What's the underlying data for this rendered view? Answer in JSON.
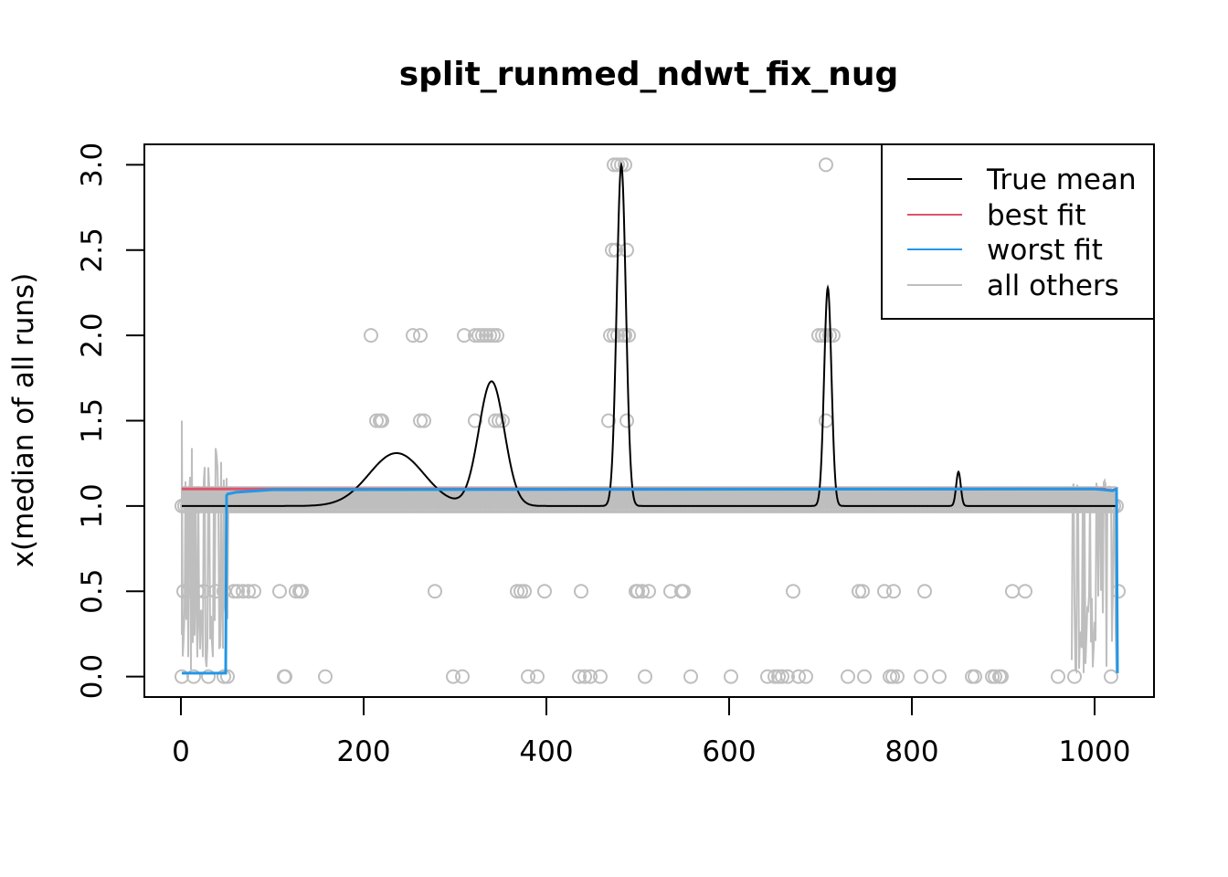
{
  "chart_data": {
    "type": "line",
    "title": "split_runmed_ndwt_fix_nug",
    "xlabel": "",
    "ylabel": "x(median of all runs)",
    "xlim": [
      -40,
      1065
    ],
    "ylim": [
      -0.12,
      3.12
    ],
    "x_ticks": [
      0,
      200,
      400,
      600,
      800,
      1000
    ],
    "y_ticks": [
      0.0,
      0.5,
      1.0,
      1.5,
      2.0,
      2.5,
      3.0
    ],
    "x_tick_labels": [
      "0",
      "200",
      "400",
      "600",
      "800",
      "1000"
    ],
    "y_tick_labels": [
      "0.0",
      "0.5",
      "1.0",
      "1.5",
      "2.0",
      "2.5",
      "3.0"
    ],
    "grid": false,
    "legend_position": "top-right",
    "legend": [
      {
        "label": "True mean",
        "color": "#000000"
      },
      {
        "label": "best fit",
        "color": "#DF536B"
      },
      {
        "label": "worst fit",
        "color": "#2297E6"
      },
      {
        "label": "all others",
        "color": "#BEBEBE"
      }
    ],
    "true_mean": {
      "baseline": 1.0,
      "bumps": [
        {
          "center": 236,
          "height": 0.31,
          "width": 30
        },
        {
          "center": 340,
          "height": 0.73,
          "width": 14
        },
        {
          "center": 482,
          "height": 2.0,
          "width": 5
        },
        {
          "center": 708,
          "height": 1.28,
          "width": 4
        },
        {
          "center": 851,
          "height": 0.2,
          "width": 2.5
        }
      ]
    },
    "best_fit": {
      "x": [
        1,
        1010,
        1018,
        1024
      ],
      "y": [
        1.1,
        1.1,
        1.09,
        1.1
      ]
    },
    "worst_fit": {
      "x": [
        1,
        49,
        50,
        51,
        60,
        100,
        1000,
        1020,
        1024,
        1025
      ],
      "y": [
        0.02,
        0.02,
        1.06,
        1.07,
        1.08,
        1.095,
        1.1,
        1.09,
        1.1,
        0.02
      ]
    },
    "observations": {
      "y0": [
        1,
        14,
        30,
        47,
        51,
        113,
        114,
        158,
        298,
        308,
        380,
        390,
        436,
        442,
        448,
        459,
        508,
        558,
        602,
        642,
        650,
        654,
        658,
        664,
        676,
        684,
        730,
        748,
        776,
        779,
        784,
        810,
        830,
        866,
        869,
        888,
        891,
        896,
        898,
        960,
        978,
        1018
      ],
      "y05": [
        3,
        8,
        18,
        25,
        38,
        47,
        58,
        62,
        68,
        74,
        80,
        108,
        126,
        130,
        132,
        278,
        368,
        372,
        376,
        398,
        438,
        498,
        500,
        505,
        512,
        536,
        548,
        550,
        670,
        742,
        746,
        770,
        780,
        814,
        910,
        924,
        1026
      ],
      "y15": [
        214,
        218,
        220,
        262,
        266,
        322,
        344,
        348,
        352,
        468,
        488,
        706
      ],
      "y2": [
        208,
        254,
        262,
        310,
        322,
        326,
        330,
        334,
        338,
        342,
        346,
        470,
        474,
        478,
        484,
        486,
        490,
        698,
        702,
        706,
        710,
        714
      ],
      "y25": [
        472,
        476,
        488
      ],
      "y3": [
        474,
        478,
        482,
        486,
        706
      ]
    }
  }
}
